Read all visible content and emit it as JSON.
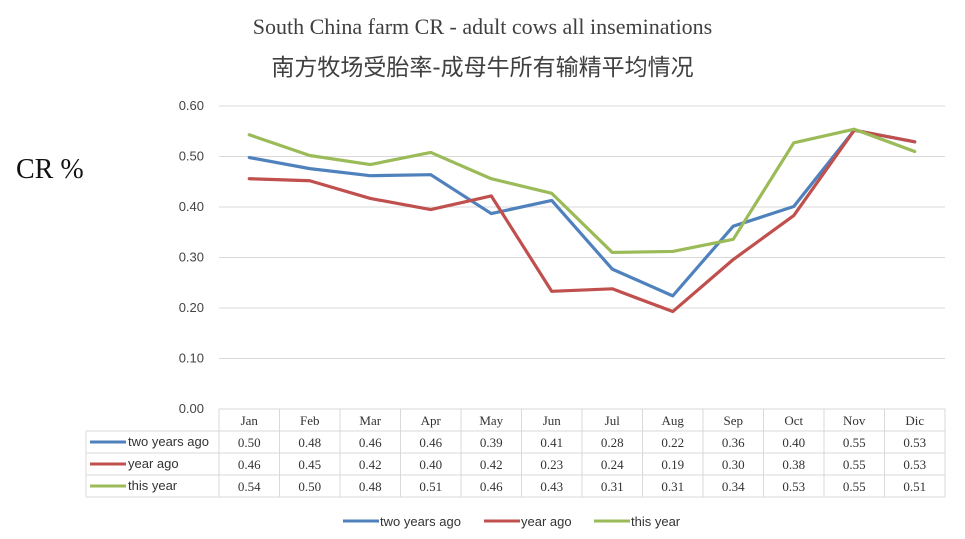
{
  "chart_data": {
    "type": "line",
    "title": "South China farm CR - adult cows all inseminations",
    "subtitle": "南方牧场受胎率-成母牛所有输精平均情况",
    "ylabel": "CR %",
    "xlabel": "",
    "ylim": [
      0,
      0.6
    ],
    "yticks": [
      "0.00",
      "0.10",
      "0.20",
      "0.30",
      "0.40",
      "0.50",
      "0.60"
    ],
    "grid": true,
    "legend": "bottom",
    "categories": [
      "Jan",
      "Feb",
      "Mar",
      "Apr",
      "May",
      "Jun",
      "Jul",
      "Aug",
      "Sep",
      "Oct",
      "Nov",
      "Dic"
    ],
    "series": [
      {
        "name": "two years ago",
        "color": "#4f81bd",
        "values": [
          0.498,
          0.476,
          0.462,
          0.464,
          0.387,
          0.413,
          0.277,
          0.224,
          0.362,
          0.401,
          0.552,
          0.529
        ],
        "labels": [
          "0.50",
          "0.48",
          "0.46",
          "0.46",
          "0.39",
          "0.41",
          "0.28",
          "0.22",
          "0.36",
          "0.40",
          "0.55",
          "0.53"
        ]
      },
      {
        "name": "year ago",
        "color": "#c0504d",
        "values": [
          0.456,
          0.452,
          0.417,
          0.395,
          0.422,
          0.233,
          0.238,
          0.193,
          0.296,
          0.383,
          0.552,
          0.529
        ],
        "labels": [
          "0.46",
          "0.45",
          "0.42",
          "0.40",
          "0.42",
          "0.23",
          "0.24",
          "0.19",
          "0.30",
          "0.38",
          "0.55",
          "0.53"
        ]
      },
      {
        "name": "this year",
        "color": "#9bbb59",
        "values": [
          0.543,
          0.502,
          0.484,
          0.508,
          0.456,
          0.427,
          0.31,
          0.312,
          0.336,
          0.527,
          0.554,
          0.51
        ],
        "labels": [
          "0.54",
          "0.50",
          "0.48",
          "0.51",
          "0.46",
          "0.43",
          "0.31",
          "0.31",
          "0.34",
          "0.53",
          "0.55",
          "0.51"
        ]
      }
    ]
  }
}
